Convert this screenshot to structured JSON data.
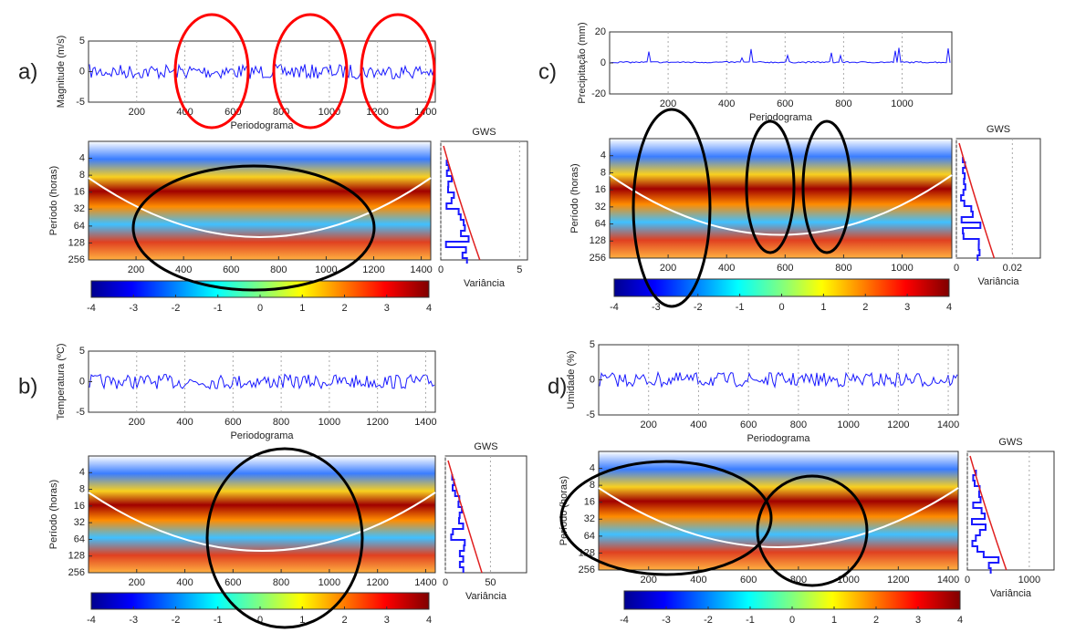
{
  "panels": [
    {
      "label": "a)",
      "ts": {
        "ylabel": "Magnitude (m/s)",
        "xlabel": "Periodograma",
        "xlim": [
          0,
          1440
        ],
        "xticks": [
          200,
          400,
          600,
          800,
          1000,
          1200,
          1400
        ],
        "ylim": [
          -5,
          5
        ],
        "yticks": [
          -5,
          0,
          5
        ]
      },
      "wavelet": {
        "ylabel": "Período (horas)",
        "ylim": [
          2,
          256
        ],
        "yticks": [
          4,
          8,
          16,
          32,
          64,
          128,
          256
        ],
        "xlim": [
          0,
          1440
        ],
        "xticks": [
          200,
          400,
          600,
          800,
          1000,
          1200,
          1400
        ]
      },
      "gws": {
        "title": "GWS",
        "xlabel": "Variância",
        "xlim": [
          0,
          5.5
        ],
        "xticks": [
          0,
          5
        ]
      },
      "colorbar": {
        "lim": [
          -4,
          4
        ],
        "ticks": [
          -4,
          -3,
          -2,
          -1,
          0,
          1,
          2,
          3,
          4
        ]
      }
    },
    {
      "label": "b)",
      "ts": {
        "ylabel": "Temperatura (ºC)",
        "xlabel": "Periodograma",
        "xlim": [
          0,
          1440
        ],
        "xticks": [
          200,
          400,
          600,
          800,
          1000,
          1200,
          1400
        ],
        "ylim": [
          -5,
          5
        ],
        "yticks": [
          -5,
          0,
          5
        ]
      },
      "wavelet": {
        "ylabel": "Período (horas)",
        "ylim": [
          2,
          256
        ],
        "yticks": [
          4,
          8,
          16,
          32,
          64,
          128,
          256
        ],
        "xlim": [
          0,
          1440
        ],
        "xticks": [
          200,
          400,
          600,
          800,
          1000,
          1200,
          1400
        ]
      },
      "gws": {
        "title": "GWS",
        "xlabel": "Variância",
        "xlim": [
          0,
          90
        ],
        "xticks": [
          0,
          50
        ]
      },
      "colorbar": {
        "lim": [
          -4,
          4
        ],
        "ticks": [
          -4,
          -3,
          -2,
          -1,
          0,
          1,
          2,
          3,
          4
        ]
      }
    },
    {
      "label": "c)",
      "ts": {
        "ylabel": "Precipitação (mm)",
        "xlabel": "Periodograma",
        "xlim": [
          0,
          1170
        ],
        "xticks": [
          200,
          400,
          600,
          800,
          1000
        ],
        "ylim": [
          -20,
          20
        ],
        "yticks": [
          -20,
          0,
          20
        ]
      },
      "wavelet": {
        "ylabel": "Período (horas)",
        "ylim": [
          2,
          256
        ],
        "yticks": [
          4,
          8,
          16,
          32,
          64,
          128,
          256
        ],
        "xlim": [
          0,
          1170
        ],
        "xticks": [
          200,
          400,
          600,
          800,
          1000
        ]
      },
      "gws": {
        "title": "GWS",
        "xlabel": "Variância",
        "xlim": [
          0,
          0.03
        ],
        "xticks": [
          0,
          0.02
        ]
      },
      "colorbar": {
        "lim": [
          -4,
          4
        ],
        "ticks": [
          -4,
          -3,
          -2,
          -1,
          0,
          1,
          2,
          3,
          4
        ]
      }
    },
    {
      "label": "d)",
      "ts": {
        "ylabel": "Umidade (%)",
        "xlabel": "Periodograma",
        "xlim": [
          0,
          1440
        ],
        "xticks": [
          200,
          400,
          600,
          800,
          1000,
          1200,
          1400
        ],
        "ylim": [
          -5,
          5
        ],
        "yticks": [
          -5,
          0,
          5
        ]
      },
      "wavelet": {
        "ylabel": "Período (horas)",
        "ylim": [
          2,
          256
        ],
        "yticks": [
          4,
          8,
          16,
          32,
          64,
          128,
          256
        ],
        "xlim": [
          0,
          1440
        ],
        "xticks": [
          200,
          400,
          600,
          800,
          1000,
          1200,
          1400
        ]
      },
      "gws": {
        "title": "GWS",
        "xlabel": "Variância",
        "xlim": [
          0,
          1400
        ],
        "xticks": [
          0,
          1000
        ]
      },
      "colorbar": {
        "lim": [
          -4,
          4
        ],
        "ticks": [
          -4,
          -3,
          -2,
          -1,
          0,
          1,
          2,
          3,
          4
        ]
      }
    }
  ]
}
